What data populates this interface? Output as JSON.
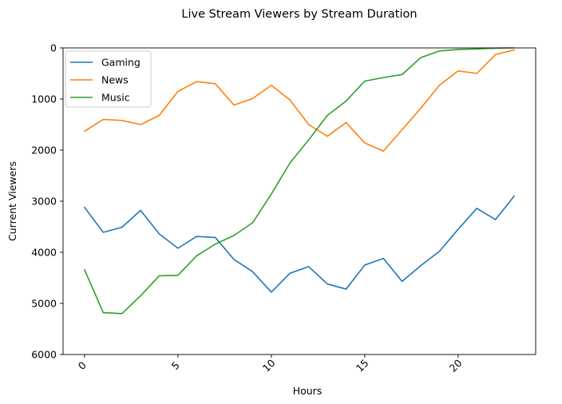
{
  "chart_data": {
    "type": "line",
    "title": "Live Stream Viewers by Stream Duration",
    "xlabel": "Hours",
    "ylabel": "Current Viewers",
    "xlim": [
      -1.15,
      24.15
    ],
    "ylim": [
      6000,
      0
    ],
    "y_inverted": true,
    "xticks": [
      0,
      5,
      10,
      15,
      20
    ],
    "xtick_labels": [
      "0",
      "5",
      "10",
      "15",
      "20"
    ],
    "xtick_rotation": 45,
    "yticks": [
      0,
      1000,
      2000,
      3000,
      4000,
      5000,
      6000
    ],
    "ytick_labels": [
      "0",
      "1000",
      "2000",
      "3000",
      "4000",
      "5000",
      "6000"
    ],
    "grid": false,
    "legend_position": "upper-left",
    "x": [
      0,
      1,
      2,
      3,
      4,
      5,
      6,
      7,
      8,
      9,
      10,
      11,
      12,
      13,
      14,
      15,
      16,
      17,
      18,
      19,
      20,
      21,
      22,
      23
    ],
    "series": [
      {
        "name": "Gaming",
        "color": "#1f77b4",
        "values": [
          3120,
          3610,
          3510,
          3180,
          3640,
          3920,
          3690,
          3710,
          4140,
          4380,
          4780,
          4410,
          4280,
          4620,
          4720,
          4250,
          4120,
          4570,
          4260,
          3980,
          3550,
          3140,
          3360,
          2900
        ]
      },
      {
        "name": "News",
        "color": "#ff7f0e",
        "values": [
          1630,
          1400,
          1420,
          1500,
          1320,
          850,
          660,
          700,
          1120,
          990,
          730,
          1020,
          1500,
          1730,
          1460,
          1860,
          2020,
          1600,
          1180,
          730,
          450,
          500,
          130,
          40
        ]
      },
      {
        "name": "Music",
        "color": "#2ca02c",
        "values": [
          4340,
          5180,
          5200,
          4850,
          4460,
          4450,
          4070,
          3840,
          3670,
          3420,
          2860,
          2250,
          1800,
          1320,
          1040,
          650,
          580,
          520,
          190,
          60,
          30,
          20,
          5,
          0
        ]
      }
    ]
  }
}
